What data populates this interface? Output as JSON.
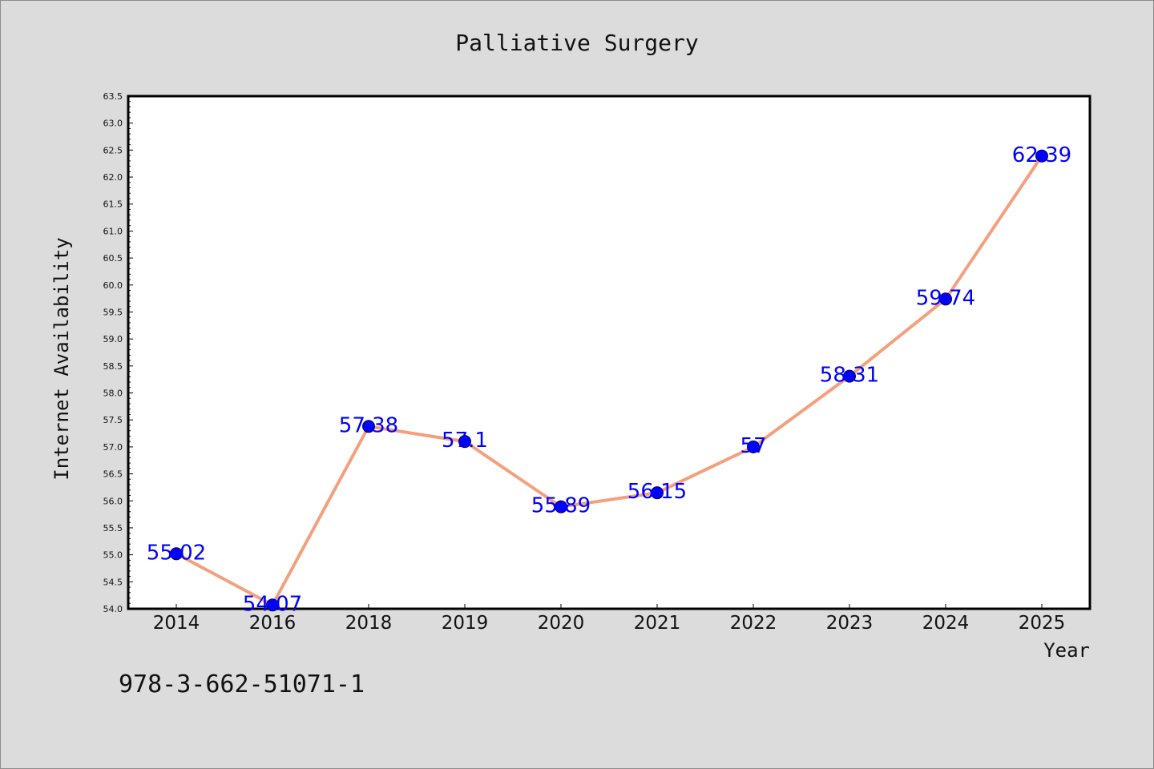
{
  "chart_data": {
    "type": "line",
    "title": "Palliative Surgery",
    "xlabel": "Year",
    "ylabel": "Internet Availability",
    "categories": [
      "2014",
      "2016",
      "2018",
      "2019",
      "2020",
      "2021",
      "2022",
      "2023",
      "2024",
      "2025"
    ],
    "values": [
      55.02,
      54.07,
      57.38,
      57.1,
      55.89,
      56.15,
      57,
      58.31,
      59.74,
      62.39
    ],
    "data_labels": [
      "55.02",
      "54.07",
      "57.38",
      "57.1",
      "55.89",
      "56.15",
      "57",
      "58.31",
      "59.74",
      "62.39"
    ],
    "ylim": [
      54.0,
      63.5
    ],
    "yticks": [
      "54.0",
      "54.5",
      "55.0",
      "55.5",
      "56.0",
      "56.5",
      "57.0",
      "57.5",
      "58.0",
      "58.5",
      "59.0",
      "59.5",
      "60.0",
      "60.5",
      "61.0",
      "61.5",
      "62.0",
      "62.5",
      "63.0",
      "63.5"
    ],
    "grid": false,
    "line_color": "#f4a07e",
    "marker_color": "#0000ff",
    "label_color": "#0000ff",
    "plot_background": "#ffffff",
    "figure_background": "#dcdcdc"
  },
  "footer": {
    "isbn": "978-3-662-51071-1"
  }
}
